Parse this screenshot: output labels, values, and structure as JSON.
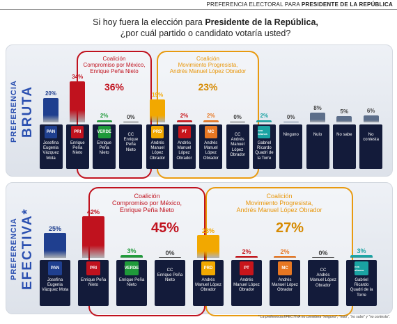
{
  "header": {
    "prefix": "PREFERENCIA ELECTORAL PARA",
    "suffix": "PRESIDENTE DE LA REPÚBLICA"
  },
  "question": {
    "line1_pre": "Si hoy fuera la elección para",
    "line1_bold": "Presidente de la República,",
    "line2": "¿por cuál partido o candidato votaría usted?"
  },
  "panels": {
    "bruta": {
      "label_small": "PREFERENCIA",
      "label_big": "BRUTA",
      "coalition_pri": {
        "title": "Coalición\nCompromiso por México,\nEnrique Peña Nieto",
        "total": "36%"
      },
      "coalition_prd": {
        "title": "Coalición\nMovimiento Progresista,\nAndrés Manuel López Obrador",
        "total": "23%"
      }
    },
    "efectiva": {
      "label_small": "PREFERENCIA",
      "label_big": "EFECTIVA*",
      "coalition_pri": {
        "title": "Coalición\nCompromiso por México,\nEnrique Peña Nieto",
        "total": "45%"
      },
      "coalition_prd": {
        "title": "Coalición\nMovimiento Progresista,\nAndrés Manuel López Obrador",
        "total": "27%"
      }
    }
  },
  "footnote": "* La preferencia EFECTIVA no considera \"ninguno\", \"nulo\", \"no sabe\" y \"no contesta\".",
  "colors": {
    "pan": "#1f3f8f",
    "pri": "#c0121e",
    "verde": "#1f9a3a",
    "cc": "#3a3a3a",
    "prd": "#f2a800",
    "pt": "#c8151b",
    "mc": "#e87722",
    "nva": "#1aa3a3",
    "grey": "#5c6e8a"
  },
  "chart_data": [
    {
      "type": "bar",
      "categories": [
        "Josefina Eugenia Vázquez Mota",
        "Enrique Peña Nieto (PRI)",
        "Enrique Peña Nieto (VERDE)",
        "CC Enrique Peña Nieto",
        "Andrés Manuel López Obrador (PRD)",
        "Andrés Manuel López Obrador (PT)",
        "Andrés Manuel López Obrador (MC)",
        "CC Andrés Manuel López Obrador",
        "Gabriel Ricardo Quadri de la Torre",
        "Ninguno",
        "Nulo",
        "No sabe",
        "No contesta"
      ],
      "values": [
        20,
        34,
        2,
        0,
        19,
        2,
        2,
        0,
        2,
        0,
        8,
        5,
        6
      ],
      "labels": [
        "20%",
        "34%",
        "2%",
        "0%",
        "19%",
        "2%",
        "2%",
        "0%",
        "2%",
        "0%",
        "8%",
        "5%",
        "6%"
      ],
      "tile_names": [
        "Josefina\nEugenia\nVázquez\nMota",
        "Enrique\nPeña\nNieto",
        "Enrique\nPeña\nNieto",
        "CC\nEnrique\nPeña\nNieto",
        "Andrés\nManuel\nLópez\nObrador",
        "Andrés\nManuel\nLópez\nObrador",
        "Andrés\nManuel\nLópez\nObrador",
        "CC\nAndrés\nManuel\nLópez\nObrador",
        "Gabriel\nRicardo\nQuadri de\nla Torre",
        "Ninguno",
        "Nulo",
        "No sabe",
        "No\ncontesta"
      ],
      "logos": [
        "PAN",
        "PRI",
        "VERDE",
        "",
        "PRD",
        "PT",
        "MC",
        "",
        "nva alianza",
        "",
        "",
        "",
        ""
      ],
      "color_keys": [
        "pan",
        "pri",
        "verde",
        "cc",
        "prd",
        "pt",
        "mc",
        "cc",
        "nva",
        "grey",
        "grey",
        "grey",
        "grey"
      ],
      "ylim": [
        0,
        40
      ]
    },
    {
      "type": "bar",
      "categories": [
        "Josefina Eugenia Vázquez Mota",
        "Enrique Peña Nieto (PRI)",
        "Enrique Peña Nieto (VERDE)",
        "CC Enrique Peña Nieto",
        "Andrés Manuel López Obrador (PRD)",
        "Andrés Manuel López Obrador (PT)",
        "Andrés Manuel López Obrador (MC)",
        "CC Andrés Manuel López Obrador",
        "Gabriel Ricardo Quadri de la Torre"
      ],
      "values": [
        25,
        42,
        3,
        0,
        23,
        2,
        2,
        0,
        3
      ],
      "labels": [
        "25%",
        "42%",
        "3%",
        "0%",
        "23%",
        "2%",
        "2%",
        "0%",
        "3%"
      ],
      "tile_names": [
        "Josefina\nEugenia\nVázquez Mota",
        "Enrique Peña\nNieto",
        "Enrique Peña\nNieto",
        "CC\nEnrique Peña\nNieto",
        "Andrés\nManuel López\nObrador",
        "Andrés\nManuel López\nObrador",
        "Andrés\nManuel López\nObrador",
        "CC\nAndrés\nManuel López\nObrador",
        "Gabriel\nRicardo\nQuadri de la\nTorre"
      ],
      "logos": [
        "PAN",
        "PRI",
        "VERDE",
        "",
        "PRD",
        "PT",
        "MC",
        "",
        "nva alianza"
      ],
      "color_keys": [
        "pan",
        "pri",
        "verde",
        "cc",
        "prd",
        "pt",
        "mc",
        "cc",
        "nva"
      ],
      "ylim": [
        0,
        50
      ]
    }
  ]
}
